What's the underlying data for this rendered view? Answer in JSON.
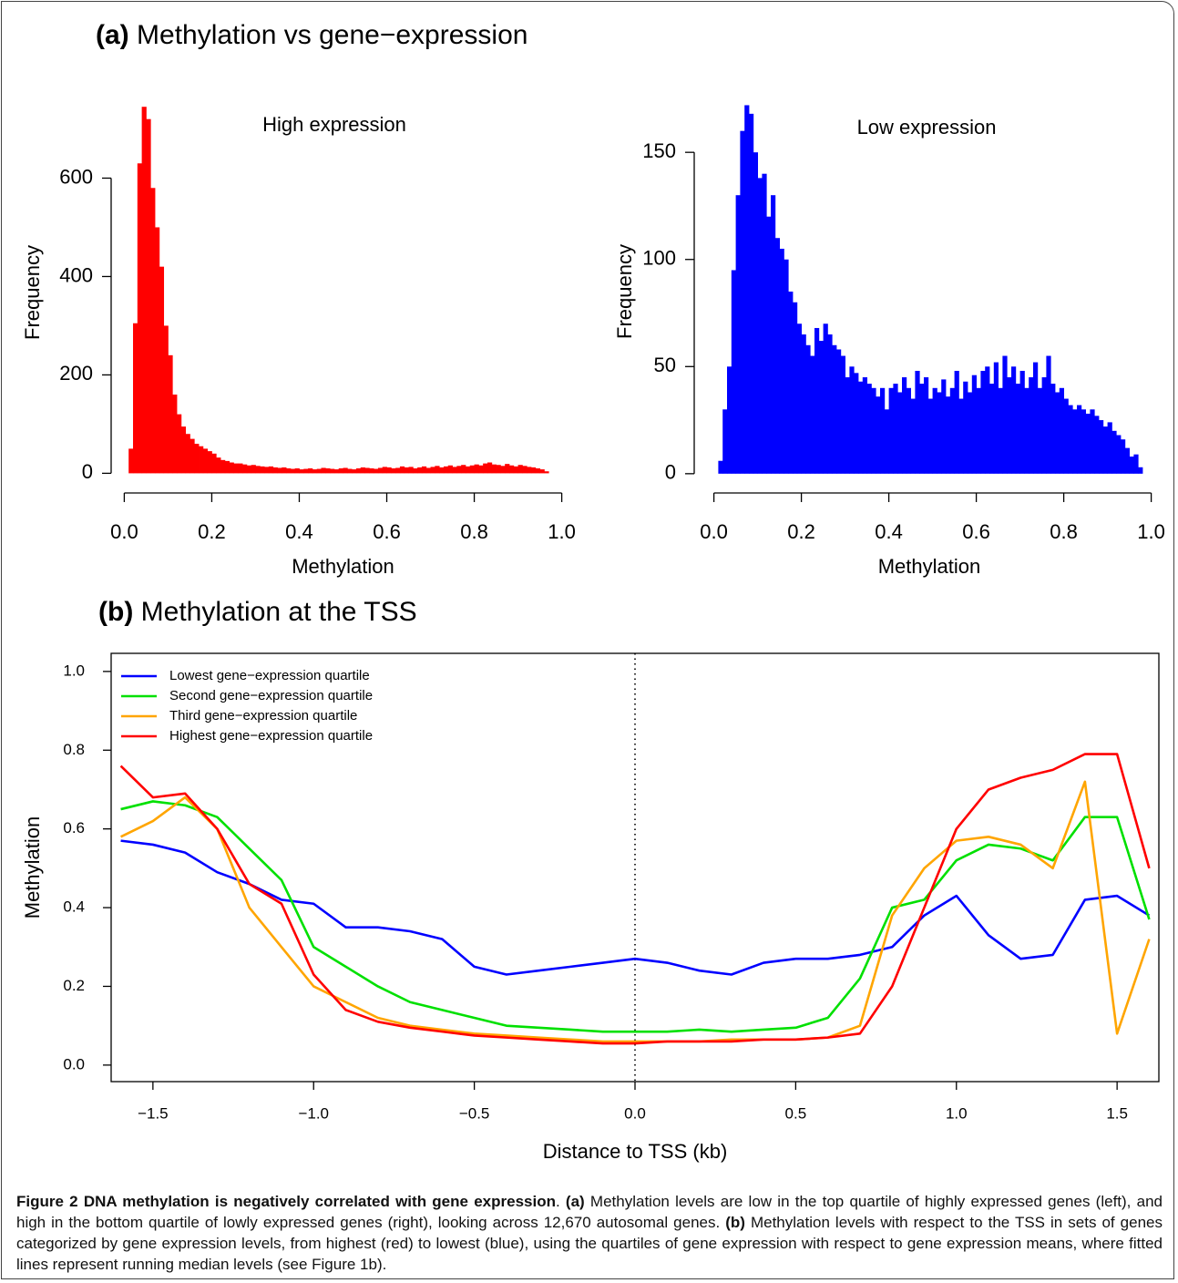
{
  "panels": [
    {
      "label": "(a)",
      "title": "Methylation vs gene−expression"
    },
    {
      "label": "(b)",
      "title": "Methylation at the TSS"
    }
  ],
  "chart_data": [
    {
      "type": "histogram",
      "annotation": "High expression",
      "xlabel": "Methylation",
      "ylabel": "Frequency",
      "color": "#ff0000",
      "bins": [
        0.01,
        0.02,
        0.03,
        0.04,
        0.05,
        0.06,
        0.07,
        0.08,
        0.09,
        0.1,
        0.11,
        0.12,
        0.13,
        0.14,
        0.15,
        0.16,
        0.17,
        0.18,
        0.19,
        0.2,
        0.21,
        0.22,
        0.23,
        0.24,
        0.25,
        0.26,
        0.27,
        0.28,
        0.29,
        0.3,
        0.31,
        0.32,
        0.33,
        0.34,
        0.35,
        0.36,
        0.37,
        0.38,
        0.39,
        0.4,
        0.41,
        0.42,
        0.43,
        0.44,
        0.45,
        0.46,
        0.47,
        0.48,
        0.49,
        0.5,
        0.51,
        0.52,
        0.53,
        0.54,
        0.55,
        0.56,
        0.57,
        0.58,
        0.59,
        0.6,
        0.61,
        0.62,
        0.63,
        0.64,
        0.65,
        0.66,
        0.67,
        0.68,
        0.69,
        0.7,
        0.71,
        0.72,
        0.73,
        0.74,
        0.75,
        0.76,
        0.77,
        0.78,
        0.79,
        0.8,
        0.81,
        0.82,
        0.83,
        0.84,
        0.85,
        0.86,
        0.87,
        0.88,
        0.89,
        0.9,
        0.91,
        0.92,
        0.93,
        0.94,
        0.95,
        0.96,
        0.97
      ],
      "values": [
        50,
        305,
        630,
        745,
        720,
        580,
        500,
        420,
        300,
        240,
        160,
        120,
        95,
        80,
        70,
        60,
        55,
        50,
        45,
        40,
        32,
        27,
        25,
        22,
        20,
        20,
        18,
        16,
        17,
        15,
        14,
        13,
        14,
        12,
        11,
        12,
        10,
        9,
        10,
        8,
        9,
        10,
        8,
        9,
        11,
        10,
        9,
        8,
        10,
        11,
        9,
        8,
        10,
        12,
        11,
        10,
        9,
        11,
        13,
        12,
        10,
        11,
        14,
        12,
        13,
        10,
        12,
        14,
        11,
        13,
        15,
        12,
        14,
        16,
        13,
        15,
        17,
        14,
        16,
        18,
        16,
        20,
        22,
        18,
        17,
        15,
        19,
        16,
        14,
        17,
        15,
        13,
        12,
        10,
        8,
        4
      ],
      "xlim": [
        -0.03,
        1.03
      ],
      "ylim": [
        -40,
        775
      ],
      "xticks": [
        {
          "value": 0,
          "label": "0.0"
        },
        0.2,
        0.4,
        0.6,
        0.8,
        {
          "value": 1,
          "label": "1.0"
        }
      ],
      "yticks": [
        0,
        200,
        400,
        600
      ]
    },
    {
      "type": "histogram",
      "annotation": "Low expression",
      "xlabel": "Methylation",
      "ylabel": "Frequency",
      "color": "#0000ff",
      "bins": [
        0.01,
        0.02,
        0.03,
        0.04,
        0.05,
        0.06,
        0.07,
        0.08,
        0.09,
        0.1,
        0.11,
        0.12,
        0.13,
        0.14,
        0.15,
        0.16,
        0.17,
        0.18,
        0.19,
        0.2,
        0.21,
        0.22,
        0.23,
        0.24,
        0.25,
        0.26,
        0.27,
        0.28,
        0.29,
        0.3,
        0.31,
        0.32,
        0.33,
        0.34,
        0.35,
        0.36,
        0.37,
        0.38,
        0.39,
        0.4,
        0.41,
        0.42,
        0.43,
        0.44,
        0.45,
        0.46,
        0.47,
        0.48,
        0.49,
        0.5,
        0.51,
        0.52,
        0.53,
        0.54,
        0.55,
        0.56,
        0.57,
        0.58,
        0.59,
        0.6,
        0.61,
        0.62,
        0.63,
        0.64,
        0.65,
        0.66,
        0.67,
        0.68,
        0.69,
        0.7,
        0.71,
        0.72,
        0.73,
        0.74,
        0.75,
        0.76,
        0.77,
        0.78,
        0.79,
        0.8,
        0.81,
        0.82,
        0.83,
        0.84,
        0.85,
        0.86,
        0.87,
        0.88,
        0.89,
        0.9,
        0.91,
        0.92,
        0.93,
        0.94,
        0.95,
        0.96,
        0.97,
        0.98
      ],
      "values": [
        6,
        30,
        50,
        95,
        130,
        160,
        172,
        168,
        150,
        138,
        140,
        120,
        130,
        110,
        105,
        100,
        85,
        80,
        70,
        65,
        60,
        55,
        68,
        62,
        70,
        65,
        60,
        58,
        55,
        45,
        50,
        47,
        43,
        45,
        42,
        40,
        36,
        40,
        30,
        40,
        42,
        38,
        45,
        40,
        35,
        48,
        42,
        45,
        35,
        40,
        38,
        44,
        36,
        40,
        48,
        35,
        43,
        38,
        46,
        40,
        48,
        50,
        42,
        52,
        40,
        55,
        45,
        50,
        42,
        48,
        40,
        45,
        52,
        40,
        45,
        55,
        42,
        38,
        40,
        35,
        32,
        30,
        32,
        30,
        28,
        30,
        27,
        25,
        22,
        24,
        20,
        18,
        16,
        12,
        8,
        9,
        3
      ],
      "xlim": [
        -0.045,
        1.03
      ],
      "ylim": [
        -9,
        179
      ],
      "xticks": [
        {
          "value": 0,
          "label": "0.0"
        },
        0.2,
        0.4,
        0.6,
        0.8,
        {
          "value": 1,
          "label": "1.0"
        }
      ],
      "yticks": [
        0,
        50,
        100,
        150
      ]
    },
    {
      "type": "line",
      "xlabel": "Distance to TSS (kb)",
      "ylabel": "Methylation",
      "vline": 0,
      "x": [
        -1.6,
        -1.5,
        -1.4,
        -1.3,
        -1.2,
        -1.1,
        -1.0,
        -0.9,
        -0.8,
        -0.7,
        -0.6,
        -0.5,
        -0.4,
        -0.3,
        -0.2,
        -0.1,
        0,
        0.1,
        0.2,
        0.3,
        0.4,
        0.5,
        0.6,
        0.7,
        0.8,
        0.9,
        1.0,
        1.1,
        1.2,
        1.3,
        1.4,
        1.5,
        1.6
      ],
      "series": [
        {
          "name": "Lowest gene−expression quartile",
          "color": "#0000ff",
          "values": [
            0.57,
            0.56,
            0.54,
            0.49,
            0.46,
            0.42,
            0.41,
            0.35,
            0.35,
            0.34,
            0.32,
            0.25,
            0.23,
            0.24,
            0.25,
            0.26,
            0.27,
            0.26,
            0.24,
            0.23,
            0.26,
            0.27,
            0.27,
            0.28,
            0.3,
            0.38,
            0.43,
            0.33,
            0.27,
            0.28,
            0.42,
            0.43,
            0.38
          ]
        },
        {
          "name": "Second gene−expression quartile",
          "color": "#00e000",
          "values": [
            0.65,
            0.67,
            0.66,
            0.63,
            0.55,
            0.47,
            0.3,
            0.25,
            0.2,
            0.16,
            0.14,
            0.12,
            0.1,
            0.095,
            0.09,
            0.085,
            0.085,
            0.085,
            0.09,
            0.085,
            0.09,
            0.095,
            0.12,
            0.22,
            0.4,
            0.42,
            0.52,
            0.56,
            0.55,
            0.52,
            0.63,
            0.63,
            0.37
          ]
        },
        {
          "name": "Third gene−expression quartile",
          "color": "#ffa500",
          "values": [
            0.58,
            0.62,
            0.68,
            0.6,
            0.4,
            0.3,
            0.2,
            0.16,
            0.12,
            0.1,
            0.09,
            0.08,
            0.075,
            0.07,
            0.065,
            0.06,
            0.06,
            0.06,
            0.06,
            0.065,
            0.065,
            0.065,
            0.07,
            0.1,
            0.38,
            0.5,
            0.57,
            0.58,
            0.56,
            0.5,
            0.72,
            0.08,
            0.32
          ]
        },
        {
          "name": "Highest gene−expression quartile",
          "color": "#ff0000",
          "values": [
            0.76,
            0.68,
            0.69,
            0.6,
            0.46,
            0.41,
            0.23,
            0.14,
            0.11,
            0.095,
            0.085,
            0.075,
            0.07,
            0.065,
            0.06,
            0.055,
            0.055,
            0.06,
            0.06,
            0.06,
            0.065,
            0.065,
            0.07,
            0.08,
            0.2,
            0.4,
            0.6,
            0.7,
            0.73,
            0.75,
            0.79,
            0.79,
            0.5
          ]
        }
      ],
      "xlim": [
        -1.63,
        1.63
      ],
      "ylim": [
        -0.042,
        1.046
      ],
      "xticks": [
        {
          "value": -1.5,
          "label": "−1.5"
        },
        {
          "value": -1,
          "label": "−1.0"
        },
        {
          "value": -0.5,
          "label": "−0.5"
        },
        {
          "value": 0,
          "label": "0.0"
        },
        0.5,
        {
          "value": 1,
          "label": "1.0"
        },
        1.5
      ],
      "yticks": [
        {
          "value": 0,
          "label": "0.0"
        },
        0.2,
        0.4,
        0.6,
        0.8,
        {
          "value": 1,
          "label": "1.0"
        }
      ]
    }
  ],
  "caption": [
    {
      "text": "Figure 2 DNA methylation is negatively correlated with gene expression",
      "bold": true
    },
    {
      "text": ". ",
      "bold": false
    },
    {
      "text": "(a)",
      "bold": true
    },
    {
      "text": " Methylation levels are low in the top quartile of highly expressed genes (left), and high in the bottom quartile of lowly expressed genes (right), looking across 12,670 autosomal genes. ",
      "bold": false
    },
    {
      "text": "(b)",
      "bold": true
    },
    {
      "text": " Methylation levels with respect to the TSS in sets of genes categorized by gene expression levels, from highest (red) to lowest (blue), using the quartiles of gene expression with respect to gene expression means, where fitted lines represent running median levels (see Figure 1b).",
      "bold": false
    }
  ]
}
